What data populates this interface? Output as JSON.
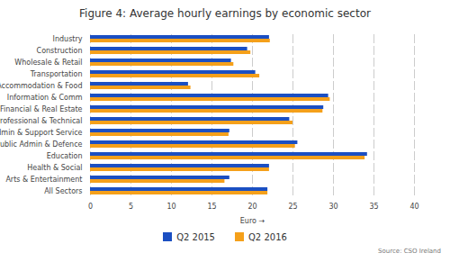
{
  "chart_data": {
    "type": "bar",
    "orientation": "horizontal",
    "title": "Figure 4: Average hourly earnings by economic sector",
    "x_label": "Euro",
    "source": "Source: CSO Ireland",
    "categories": [
      "Industry",
      "Construction",
      "Wholesale & Retail",
      "Transportation",
      "Accommodation & Food",
      "Information & Comm",
      "Financial & Real Estate",
      "Professional & Technical",
      "Admin & Support Service",
      "Public Admin & Defence",
      "Education",
      "Health & Social",
      "Arts & Entertainment",
      "All Sectors"
    ],
    "series": [
      {
        "name": "Q2 2015",
        "color": "#1b4fc2",
        "values": [
          22.1,
          19.4,
          17.4,
          20.4,
          12.1,
          29.4,
          28.8,
          24.6,
          17.2,
          25.6,
          34.2,
          22.1,
          17.2,
          21.9
        ]
      },
      {
        "name": "Q2 2016",
        "color": "#f5a01a",
        "values": [
          22.2,
          19.8,
          17.7,
          20.9,
          12.4,
          29.6,
          28.7,
          25.0,
          17.1,
          25.3,
          33.9,
          22.1,
          16.6,
          21.9
        ]
      }
    ],
    "xlim": [
      0,
      40
    ],
    "xticks": [
      0,
      5,
      10,
      15,
      20,
      25,
      30,
      35,
      40
    ],
    "grid": true,
    "legend": "bottom"
  }
}
